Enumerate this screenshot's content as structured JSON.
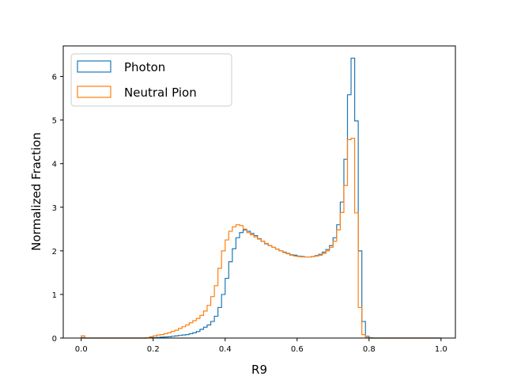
{
  "chart_data": {
    "type": "histogram",
    "xlabel": "R9",
    "ylabel": "Normalized Fraction",
    "xlim": [
      -0.05,
      1.04
    ],
    "ylim": [
      0,
      6.7
    ],
    "xticks": [
      0.0,
      0.2,
      0.4,
      0.6,
      0.8,
      1.0
    ],
    "xtick_labels": [
      "0.0",
      "0.2",
      "0.4",
      "0.6",
      "0.8",
      "1.0"
    ],
    "yticks": [
      0,
      1,
      2,
      3,
      4,
      5,
      6
    ],
    "ytick_labels": [
      "0",
      "1",
      "2",
      "3",
      "4",
      "5",
      "6"
    ],
    "grid": false,
    "legend_position": "upper-left",
    "bin_start": 0.0,
    "bin_width": 0.01,
    "series": [
      {
        "name": "Photon",
        "color": "#1f77b4",
        "values": [
          0.01,
          0.0,
          0.0,
          0.0,
          0.0,
          0.0,
          0.0,
          0.0,
          0.0,
          0.0,
          0.0,
          0.0,
          0.0,
          0.0,
          0.0,
          0.0,
          0.0,
          0.0,
          0.005,
          0.008,
          0.01,
          0.015,
          0.02,
          0.025,
          0.03,
          0.04,
          0.05,
          0.06,
          0.07,
          0.08,
          0.1,
          0.12,
          0.15,
          0.2,
          0.25,
          0.3,
          0.38,
          0.5,
          0.7,
          1.0,
          1.37,
          1.75,
          2.05,
          2.3,
          2.42,
          2.48,
          2.45,
          2.4,
          2.35,
          2.28,
          2.22,
          2.16,
          2.12,
          2.08,
          2.04,
          2.0,
          1.97,
          1.94,
          1.91,
          1.9,
          1.88,
          1.87,
          1.86,
          1.86,
          1.87,
          1.89,
          1.92,
          1.97,
          2.03,
          2.12,
          2.3,
          2.6,
          3.12,
          4.1,
          5.58,
          6.42,
          4.98,
          2.0,
          0.38,
          0.04,
          0.005,
          0.0,
          0.0,
          0.0,
          0.0,
          0.0,
          0.0,
          0.0,
          0.0,
          0.0,
          0.0,
          0.0,
          0.0,
          0.0,
          0.0,
          0.0,
          0.0,
          0.0,
          0.0,
          0.0
        ]
      },
      {
        "name": "Neutral Pion",
        "color": "#ff7f0e",
        "values": [
          0.05,
          0.0,
          0.0,
          0.0,
          0.0,
          0.0,
          0.0,
          0.0,
          0.0,
          0.0,
          0.0,
          0.0,
          0.0,
          0.0,
          0.0,
          0.0,
          0.0,
          0.0,
          0.01,
          0.03,
          0.05,
          0.07,
          0.08,
          0.1,
          0.12,
          0.15,
          0.18,
          0.22,
          0.26,
          0.3,
          0.35,
          0.4,
          0.45,
          0.52,
          0.62,
          0.75,
          0.95,
          1.2,
          1.6,
          2.0,
          2.25,
          2.45,
          2.55,
          2.6,
          2.58,
          2.5,
          2.42,
          2.37,
          2.32,
          2.27,
          2.22,
          2.17,
          2.12,
          2.08,
          2.04,
          2.0,
          1.96,
          1.93,
          1.9,
          1.88,
          1.87,
          1.86,
          1.86,
          1.86,
          1.87,
          1.88,
          1.9,
          1.94,
          2.0,
          2.08,
          2.22,
          2.48,
          2.88,
          3.5,
          4.55,
          4.58,
          2.87,
          0.7,
          0.08,
          0.01,
          0.0,
          0.0,
          0.0,
          0.0,
          0.0,
          0.0,
          0.0,
          0.0,
          0.0,
          0.0,
          0.0,
          0.0,
          0.0,
          0.0,
          0.0,
          0.0,
          0.0,
          0.0,
          0.0,
          0.0
        ]
      }
    ]
  }
}
